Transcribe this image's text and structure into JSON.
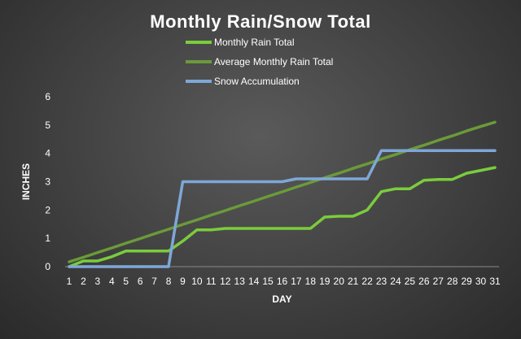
{
  "chart_data": {
    "type": "line",
    "title": "Monthly Rain/Snow Total",
    "xlabel": "DAY",
    "ylabel": "INCHES",
    "ylim": [
      0,
      6
    ],
    "yticks": [
      0,
      1,
      2,
      3,
      4,
      5,
      6
    ],
    "grid": false,
    "legend": "top-center",
    "x": [
      "1",
      "2",
      "3",
      "4",
      "5",
      "6",
      "7",
      "8",
      "9",
      "10",
      "11",
      "12",
      "13",
      "14",
      "15",
      "16",
      "17",
      "18",
      "19",
      "20",
      "21",
      "22",
      "23",
      "24",
      "25",
      "26",
      "27",
      "28",
      "29",
      "30",
      "31"
    ],
    "series": [
      {
        "name": "Monthly Rain Total",
        "color": "#7acc3c",
        "values": [
          0,
          0.2,
          0.2,
          0.35,
          0.55,
          0.55,
          0.55,
          0.55,
          0.9,
          1.3,
          1.3,
          1.35,
          1.35,
          1.35,
          1.35,
          1.35,
          1.35,
          1.35,
          1.75,
          1.78,
          1.78,
          2.0,
          2.65,
          2.75,
          2.75,
          3.05,
          3.08,
          3.08,
          3.3,
          3.4,
          3.5
        ]
      },
      {
        "name": "Average Monthly Rain Total",
        "color": "#6b9a3a",
        "values": [
          0.17,
          0.33,
          0.5,
          0.66,
          0.83,
          0.99,
          1.16,
          1.32,
          1.49,
          1.65,
          1.82,
          1.98,
          2.15,
          2.31,
          2.48,
          2.64,
          2.81,
          2.97,
          3.14,
          3.3,
          3.47,
          3.63,
          3.8,
          3.96,
          4.13,
          4.29,
          4.46,
          4.62,
          4.79,
          4.95,
          5.1
        ]
      },
      {
        "name": "Snow Accumulation",
        "color": "#7ea7d8",
        "values": [
          0,
          0,
          0,
          0,
          0,
          0,
          0,
          0,
          3.0,
          3.0,
          3.0,
          3.0,
          3.0,
          3.0,
          3.0,
          3.0,
          3.1,
          3.1,
          3.1,
          3.1,
          3.1,
          3.1,
          4.1,
          4.1,
          4.1,
          4.1,
          4.1,
          4.1,
          4.1,
          4.1,
          4.1
        ]
      }
    ]
  }
}
